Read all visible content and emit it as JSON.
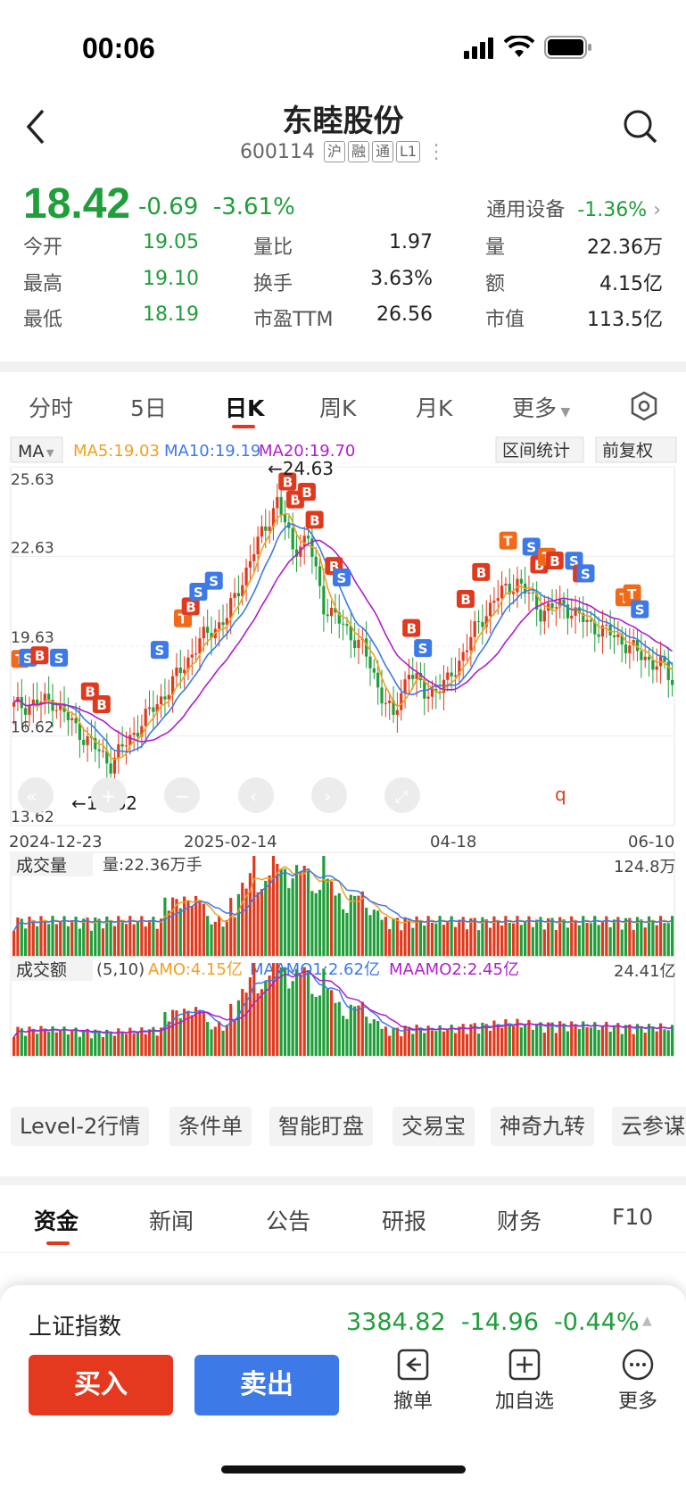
{
  "status": {
    "time": "00:06"
  },
  "header": {
    "title": "东睦股份",
    "code": "600114",
    "tags": [
      "沪",
      "融",
      "通",
      "L1"
    ]
  },
  "quote": {
    "price": "18.42",
    "change": "-0.69",
    "change_pct": "-3.61%",
    "industry": "通用设备",
    "industry_pct": "-1.36%",
    "stats": [
      {
        "label": "今开",
        "value": "19.05",
        "label2": "量比",
        "value2": "1.97",
        "label3": "量",
        "value3": "22.36万"
      },
      {
        "label": "最高",
        "value": "19.10",
        "label2": "换手",
        "value2": "3.63%",
        "label3": "额",
        "value3": "4.15亿"
      },
      {
        "label": "最低",
        "value": "18.19",
        "label2": "市盈TTM",
        "value2": "26.56",
        "label3": "市值",
        "value3": "113.5亿"
      }
    ]
  },
  "tabs": [
    "分时",
    "5日",
    "日K",
    "周K",
    "月K",
    "更多"
  ],
  "active_tab": "日K",
  "ma_bar": {
    "selector": "MA",
    "ma5": "MA5:19.03",
    "ma10": "MA10:19.19",
    "ma20": "MA20:19.70",
    "range_btn": "区间统计",
    "adj_btn": "前复权"
  },
  "chart_data": {
    "type": "candlestick",
    "y_ticks": [
      "25.63",
      "22.63",
      "19.63",
      "16.62",
      "13.62"
    ],
    "x_ticks": [
      "2024-12-23",
      "2025-02-14",
      "04-18",
      "06-10"
    ],
    "high_label": "←24.63",
    "low_label": "←14.62",
    "ylim": [
      13.62,
      25.63
    ],
    "ma_colors": {
      "ma5": "#f0a020",
      "ma10": "#3d7ae8",
      "ma20": "#b01ecc"
    },
    "up_color": "#e03a1e",
    "down_color": "#1f9e3a"
  },
  "volume": {
    "selector": "成交量",
    "label": "量:22.36万手",
    "max": "124.8万"
  },
  "amount": {
    "selector": "成交额",
    "params": "(5,10)",
    "amo": "AMO:4.15亿",
    "maamo1": "MAAMO1:2.62亿",
    "maamo2": "MAAMO2:2.45亿",
    "max": "24.41亿"
  },
  "chips": [
    "Level-2行情",
    "条件单",
    "智能盯盘",
    "交易宝",
    "神奇九转",
    "云参谋"
  ],
  "bottom_tabs": [
    "资金",
    "新闻",
    "公告",
    "研报",
    "财务",
    "F10"
  ],
  "index_bar": {
    "name": "上证指数",
    "value": "3384.82",
    "change": "-14.96",
    "pct": "-0.44%"
  },
  "actions": {
    "buy": "买入",
    "sell": "卖出",
    "cancel": "撤单",
    "add": "加自选",
    "more": "更多"
  }
}
